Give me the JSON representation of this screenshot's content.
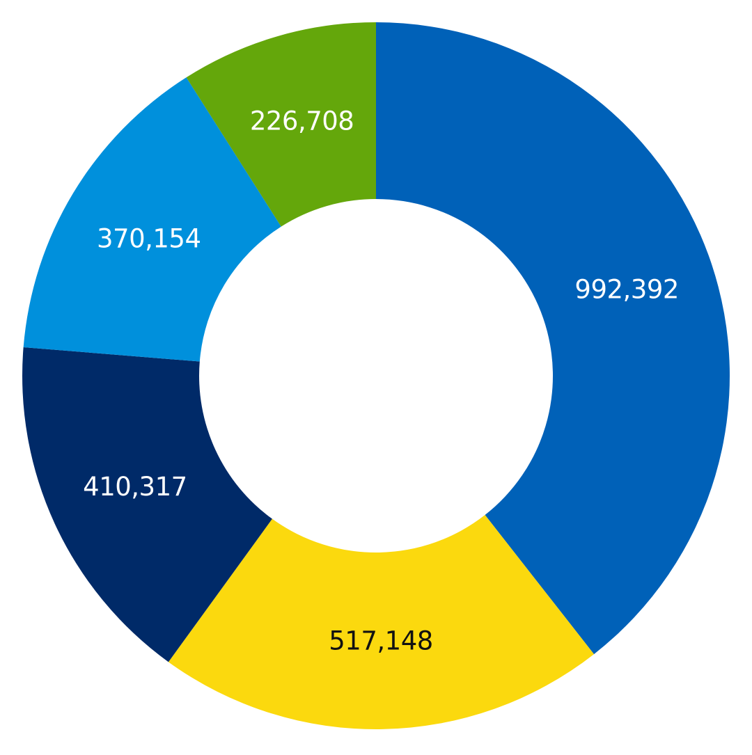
{
  "chart_data": {
    "type": "pie",
    "variant": "donut",
    "start_angle": "12 o'clock",
    "direction": "clockwise",
    "labels_on_slices": true,
    "slices": [
      {
        "value": 992392,
        "label": "992,392",
        "color": "#0061B8",
        "label_color": "#ffffff"
      },
      {
        "value": 517148,
        "label": "517,148",
        "color": "#FBD90E",
        "label_color": "#111111"
      },
      {
        "value": 410317,
        "label": "410,317",
        "color": "#002A68",
        "label_color": "#ffffff"
      },
      {
        "value": 370154,
        "label": "370,154",
        "color": "#0090DC",
        "label_color": "#ffffff"
      },
      {
        "value": 226708,
        "label": "226,708",
        "color": "#64A70B",
        "label_color": "#ffffff"
      }
    ]
  }
}
